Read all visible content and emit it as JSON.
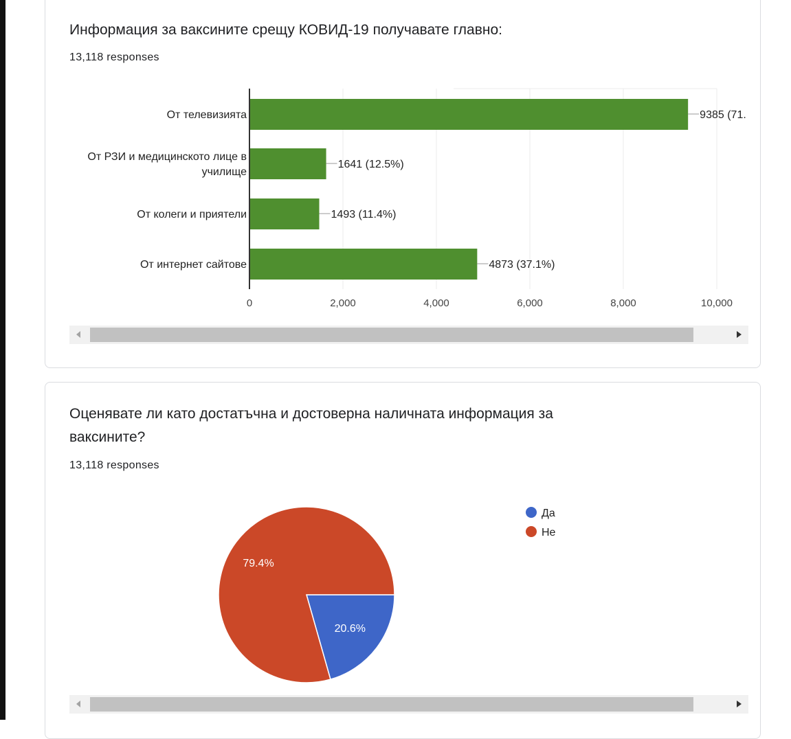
{
  "cards": [
    {
      "title": "Информация за ваксините срещу КОВИД-19 получавате главно:",
      "responses": "13,118 responses"
    },
    {
      "title": "Оценявате ли като достатъчна и достоверна наличната информация за ваксините?",
      "responses": "13,118 responses"
    }
  ],
  "chart_data": [
    {
      "type": "bar",
      "orientation": "horizontal",
      "categories": [
        [
          "От телевизията"
        ],
        [
          "От РЗИ и медицинското лице в",
          "училище"
        ],
        [
          "От колеги и приятели"
        ],
        [
          "От интернет сайтове"
        ]
      ],
      "values": [
        9385,
        1641,
        1493,
        4873
      ],
      "labels": [
        "9385 (71.",
        "1641 (12.5%)",
        "1493 (11.4%)",
        "4873 (37.1%)"
      ],
      "xlim": [
        0,
        10000
      ],
      "ticks": [
        0,
        2000,
        4000,
        6000,
        8000,
        10000
      ],
      "tick_labels": [
        "0",
        "2,000",
        "4,000",
        "6,000",
        "8,000",
        "10,000"
      ],
      "grid": true,
      "color": "#4f8f2f"
    },
    {
      "type": "pie",
      "slices": [
        {
          "name": "Да",
          "value": 20.6,
          "label": "20.6%",
          "color": "#3e66c8"
        },
        {
          "name": "Не",
          "value": 79.4,
          "label": "79.4%",
          "color": "#cb4828"
        }
      ],
      "legend": "right"
    }
  ]
}
